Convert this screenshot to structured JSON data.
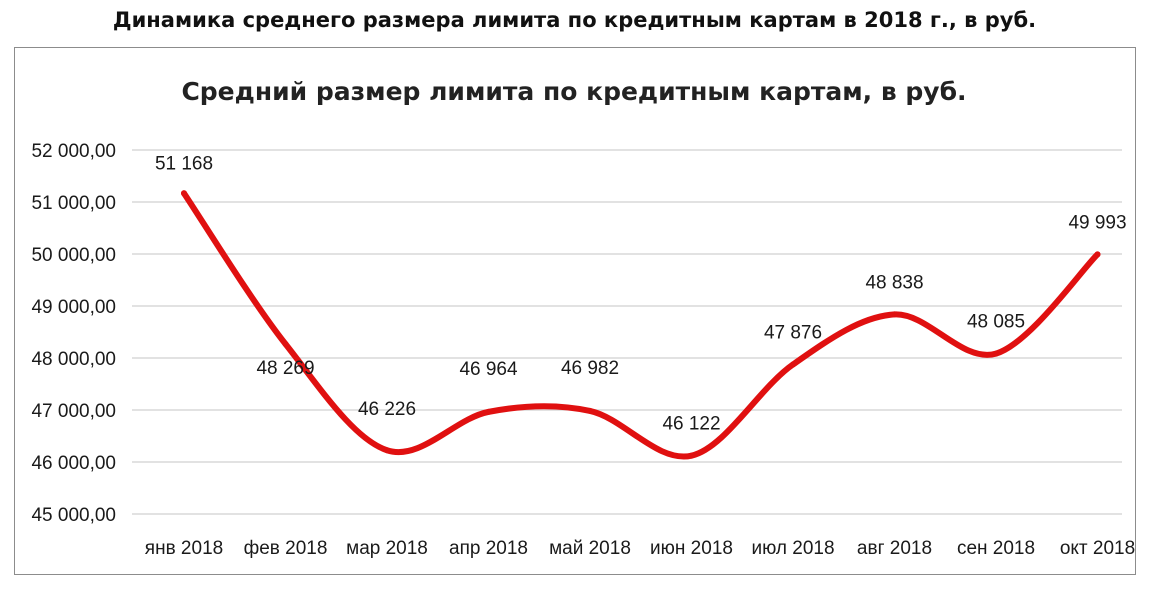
{
  "page": {
    "title": "Динамика среднего размера лимита по кредитным картам в 2018 г., в руб."
  },
  "chart_data": {
    "type": "line",
    "title": "Средний размер лимита по кредитным картам, в руб.",
    "categories": [
      "янв 2018",
      "фев 2018",
      "мар 2018",
      "апр 2018",
      "май 2018",
      "июн 2018",
      "июл 2018",
      "авг 2018",
      "сен 2018",
      "окт 2018"
    ],
    "series": [
      {
        "values": [
          51168,
          48269,
          46226,
          46964,
          46982,
          46122,
          47876,
          48838,
          48085,
          49993
        ],
        "data_labels": [
          "51 168",
          "48 269",
          "46 226",
          "46 964",
          "46 982",
          "46 122",
          "47 876",
          "48 838",
          "48 085",
          "49 993"
        ],
        "color": "#e01010",
        "smooth": true
      }
    ],
    "ylim": [
      45000,
      52000
    ],
    "yticks": [
      45000,
      46000,
      47000,
      48000,
      49000,
      50000,
      51000,
      52000
    ],
    "ytick_labels": [
      "45 000,00",
      "46 000,00",
      "47 000,00",
      "48 000,00",
      "49 000,00",
      "50 000,00",
      "51 000,00",
      "52 000,00"
    ],
    "grid": true,
    "gridline_color": "#d0d0d0",
    "xlabel": "",
    "ylabel": ""
  }
}
